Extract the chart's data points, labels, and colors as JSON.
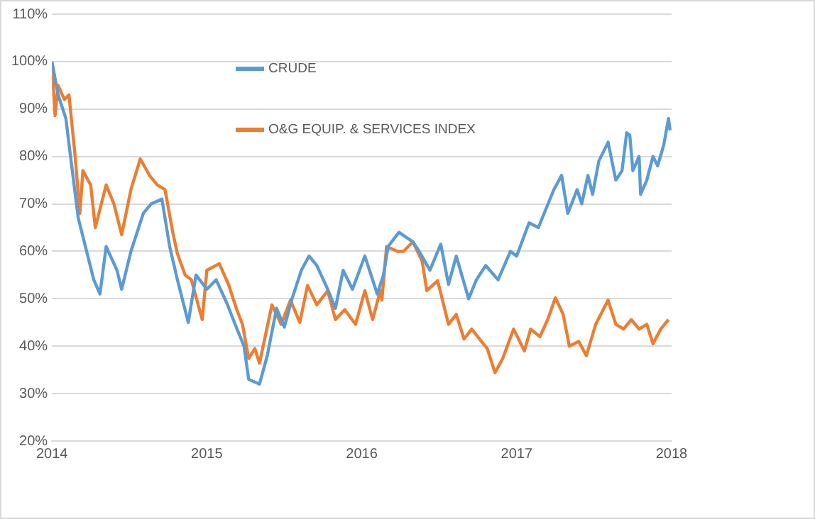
{
  "chart_data": {
    "type": "line",
    "xlim": [
      2014,
      2018
    ],
    "xticks": [
      2014,
      2015,
      2016,
      2017,
      2018
    ],
    "ylim": [
      20,
      110
    ],
    "yticks": [
      {
        "value": 20,
        "label": "20%"
      },
      {
        "value": 30,
        "label": "30%"
      },
      {
        "value": 40,
        "label": "40%"
      },
      {
        "value": 50,
        "label": "50%"
      },
      {
        "value": 60,
        "label": "60%"
      },
      {
        "value": 70,
        "label": "70%"
      },
      {
        "value": 80,
        "label": "80%"
      },
      {
        "value": 90,
        "label": "90%"
      },
      {
        "value": 100,
        "label": "100%"
      },
      {
        "value": 110,
        "label": "110%"
      }
    ],
    "grid": "y",
    "legend": "top",
    "marker": "none",
    "line_style": "solid",
    "series": [
      {
        "name": "CRUDE",
        "color": "#5b9bd5",
        "x": [
          2014,
          2014.04,
          2014.09,
          2014.12,
          2014.17,
          2014.27,
          2014.31,
          2014.35,
          2014.42,
          2014.45,
          2014.51,
          2014.59,
          2014.64,
          2014.71,
          2014.76,
          2014.81,
          2014.88,
          2014.93,
          2015.0,
          2015.06,
          2015.13,
          2015.19,
          2015.24,
          2015.27,
          2015.34,
          2015.39,
          2015.45,
          2015.5,
          2015.55,
          2015.61,
          2015.66,
          2015.71,
          2015.78,
          2015.83,
          2015.88,
          2015.94,
          2016.02,
          2016.07,
          2016.1,
          2016.14,
          2016.17,
          2016.24,
          2016.33,
          2016.37,
          2016.44,
          2016.51,
          2016.56,
          2016.61,
          2016.69,
          2016.74,
          2016.8,
          2016.88,
          2016.96,
          2017.0,
          2017.08,
          2017.14,
          2017.19,
          2017.24,
          2017.29,
          2017.33,
          2017.39,
          2017.42,
          2017.46,
          2017.49,
          2017.53,
          2017.59,
          2017.64,
          2017.68,
          2017.71,
          2017.73,
          2017.75,
          2017.79,
          2017.8,
          2017.84,
          2017.88,
          2017.91,
          2017.95,
          2017.98,
          2017.99
        ],
        "values": [
          100,
          93,
          88,
          80,
          67,
          54,
          51,
          61,
          56,
          52,
          60,
          68,
          70,
          71,
          61,
          54,
          45,
          55,
          52,
          54,
          49,
          44,
          40,
          33,
          32,
          38,
          48,
          44,
          50,
          56,
          59,
          57,
          52,
          48,
          56,
          52,
          59,
          54,
          51,
          55,
          61,
          64,
          62,
          60,
          56,
          61.5,
          53,
          59,
          50,
          54,
          57,
          54,
          60,
          59,
          66,
          65,
          69,
          73,
          76,
          68,
          73,
          70,
          76,
          72,
          79,
          83,
          75,
          77,
          85,
          84.5,
          77,
          80,
          72,
          75,
          80,
          78,
          82.5,
          88,
          85.5
        ]
      },
      {
        "name": "O&G EQUIP. & SERVICES INDEX",
        "color": "#ed7d31",
        "x": [
          2014,
          2014.02,
          2014.04,
          2014.08,
          2014.11,
          2014.15,
          2014.18,
          2014.2,
          2014.25,
          2014.28,
          2014.35,
          2014.4,
          2014.45,
          2014.51,
          2014.57,
          2014.63,
          2014.68,
          2014.73,
          2014.78,
          2014.81,
          2014.86,
          2014.9,
          2014.97,
          2015.0,
          2015.08,
          2015.14,
          2015.19,
          2015.23,
          2015.27,
          2015.31,
          2015.34,
          2015.42,
          2015.48,
          2015.54,
          2015.6,
          2015.65,
          2015.71,
          2015.78,
          2015.83,
          2015.89,
          2015.96,
          2016.02,
          2016.07,
          2016.12,
          2016.13,
          2016.16,
          2016.23,
          2016.27,
          2016.33,
          2016.39,
          2016.42,
          2016.49,
          2016.56,
          2016.61,
          2016.66,
          2016.71,
          2016.76,
          2016.81,
          2016.86,
          2016.91,
          2016.98,
          2017.05,
          2017.09,
          2017.15,
          2017.2,
          2017.25,
          2017.3,
          2017.34,
          2017.4,
          2017.45,
          2017.51,
          2017.59,
          2017.64,
          2017.69,
          2017.74,
          2017.79,
          2017.84,
          2017.88,
          2017.93,
          2017.98
        ],
        "values": [
          100,
          88.6,
          95,
          92,
          93,
          80,
          68,
          77,
          74,
          65,
          74,
          70,
          63.5,
          73,
          79.5,
          76,
          74,
          73,
          64,
          59.5,
          55,
          54,
          45.6,
          56,
          57.4,
          53,
          48,
          44.6,
          37.4,
          39.5,
          36.4,
          48.7,
          44.6,
          49.7,
          45,
          52.8,
          48.7,
          51.7,
          45.6,
          47.7,
          44.6,
          51.7,
          45.6,
          51.7,
          49.7,
          61,
          60,
          60,
          62,
          57.9,
          51.7,
          53.8,
          44.6,
          46.7,
          41.5,
          43.6,
          41.5,
          39.5,
          34.4,
          37.4,
          43.6,
          39,
          43.6,
          42,
          45.6,
          50.2,
          46.7,
          40,
          41,
          38,
          44.6,
          49.7,
          44.6,
          43.6,
          45.6,
          43.6,
          44.6,
          40.5,
          43.6,
          45.6
        ]
      }
    ]
  }
}
